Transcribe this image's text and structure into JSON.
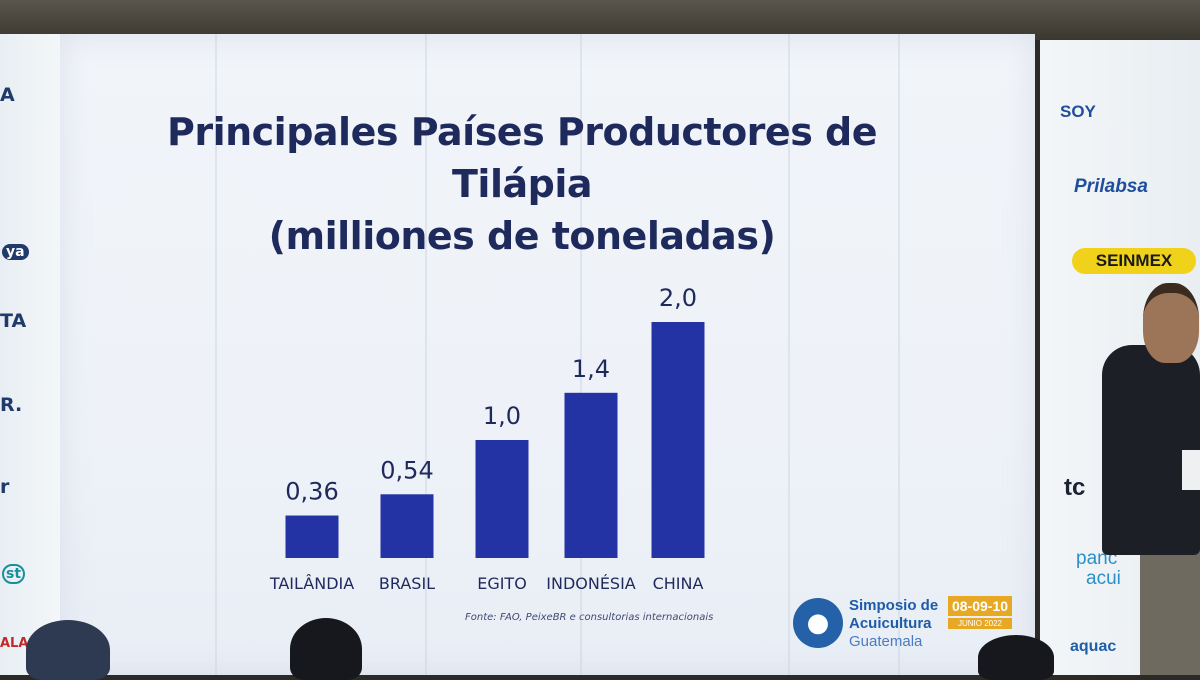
{
  "chart_data": {
    "type": "bar",
    "title": "Principales Países Productores de Tilápia",
    "subtitle": "(milliones de toneladas)",
    "categories": [
      "TAILÂNDIA",
      "BRASIL",
      "EGITO",
      "INDONÉSIA",
      "CHINA"
    ],
    "values": [
      0.36,
      0.54,
      1.0,
      1.4,
      2.0
    ],
    "value_labels": [
      "0,36",
      "0,54",
      "1,0",
      "1,4",
      "2,0"
    ],
    "ylim": [
      0,
      2.0
    ],
    "grid": false,
    "bar_color": "#2433a3"
  },
  "source": "Fonte: FAO, PeixeBR e consultorias internacionais",
  "event": {
    "name_line1": "Simposio de",
    "name_line2": "Acuicultura",
    "name_line3": "Guatemala",
    "date": "08-09-10",
    "month": "JUNIO 2022",
    "brand_color": "#1e5ba8"
  },
  "sponsors_right": [
    "SOY",
    "Prilabsa",
    "SEINMEX",
    "tc",
    "panc",
    "acui",
    "aquac"
  ],
  "sponsors_left": [
    "A",
    "ya",
    "TA",
    "R.",
    "r",
    "st",
    "ALA"
  ]
}
